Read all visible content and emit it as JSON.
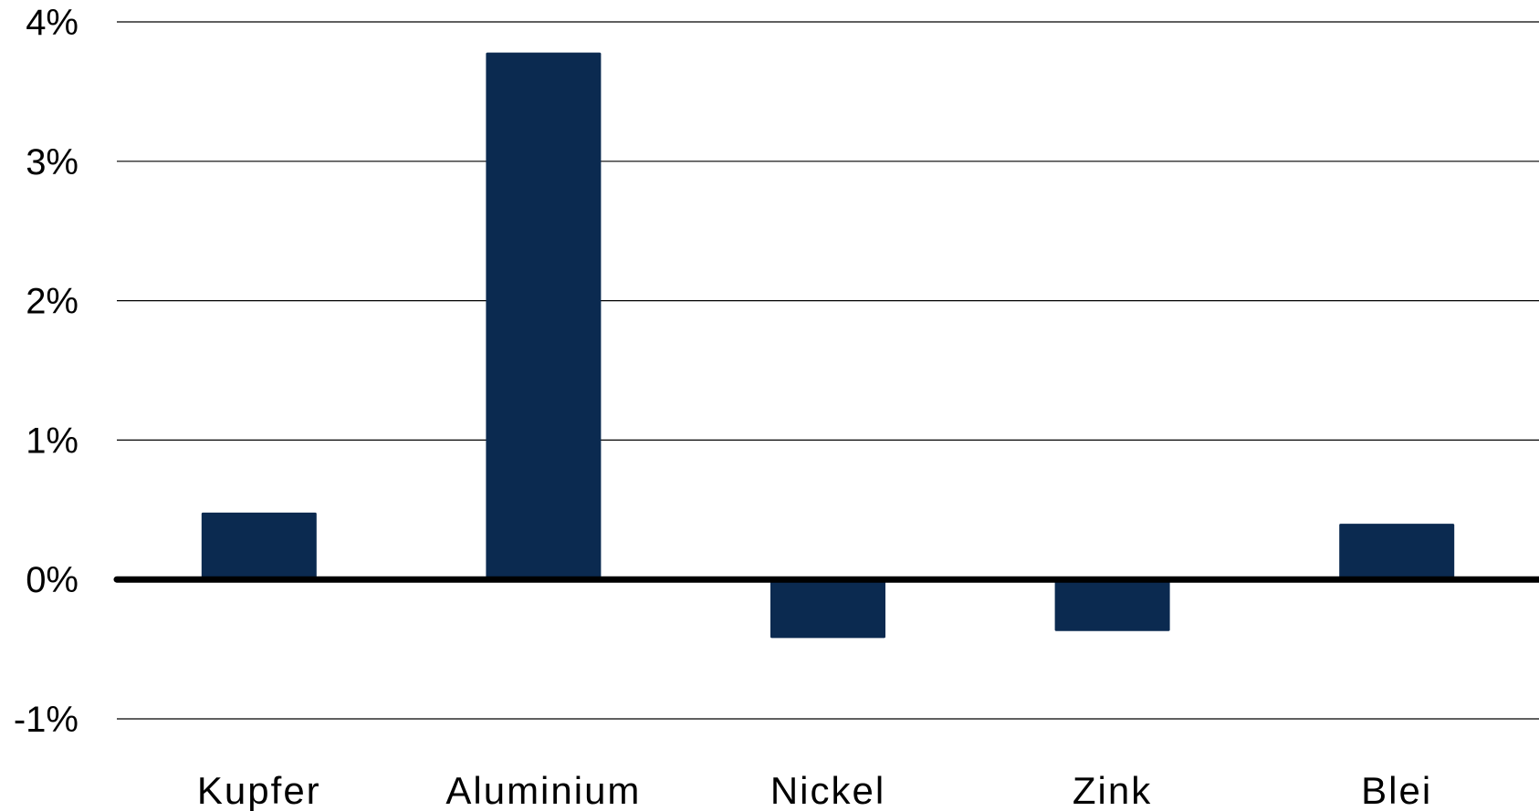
{
  "chart_data": {
    "type": "bar",
    "categories": [
      "Kupfer",
      "Aluminium",
      "Nickel",
      "Zink",
      "Blei"
    ],
    "values": [
      0.48,
      3.78,
      -0.42,
      -0.37,
      0.4
    ],
    "ylim": [
      -1,
      4
    ],
    "yticks": [
      4,
      3,
      2,
      1,
      0,
      -1
    ],
    "ytick_labels": [
      "4%",
      "3%",
      "2%",
      "1%",
      "0%",
      "-1%"
    ],
    "grid": true,
    "title": "",
    "xlabel": "",
    "ylabel": "",
    "colors": {
      "bar": "#0b2a50",
      "axis": "#000000",
      "grid": "#000000"
    }
  }
}
